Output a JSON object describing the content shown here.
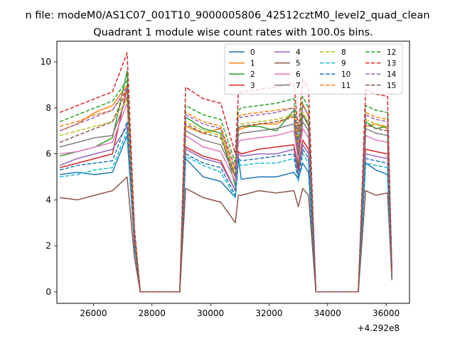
{
  "chart_data": {
    "type": "line",
    "suptitle": "n file: modeM0/AS1C07_001T10_9000005806_42512cztM0_level2_quad_clean",
    "title": "Quadrant 1 module wise count rates with 100.0s bins.",
    "xlabel": "",
    "ylabel": "",
    "offset_label": "+4.292e8",
    "xlim": [
      24750,
      36800
    ],
    "ylim": [
      -0.5,
      10.9
    ],
    "xticks": [
      26000,
      28000,
      30000,
      32000,
      34000,
      36000
    ],
    "yticks": [
      0,
      2,
      4,
      6,
      8,
      10
    ],
    "grid": false,
    "legend": {
      "loc": "upper right",
      "ncol": 4
    },
    "x": [
      24850,
      25450,
      26050,
      26650,
      27150,
      27400,
      27600,
      28950,
      29150,
      29750,
      30350,
      30850,
      30950,
      31050,
      31650,
      32250,
      32850,
      33000,
      33150,
      33350,
      33600,
      35050,
      35300,
      35650,
      36050,
      36200
    ],
    "series": [
      {
        "name": "0",
        "color": "#1f77b4",
        "style": "solid",
        "values": [
          5.1,
          5.2,
          5.1,
          5.2,
          6.8,
          2.0,
          0,
          0,
          5.8,
          5.0,
          4.8,
          4.1,
          5.9,
          4.9,
          5.0,
          5.0,
          5.2,
          4.9,
          5.6,
          5.2,
          0,
          0,
          5.6,
          5.3,
          5.1,
          0.6
        ]
      },
      {
        "name": "1",
        "color": "#ff7f0e",
        "style": "solid",
        "values": [
          7.0,
          7.3,
          7.8,
          8.1,
          9.0,
          2.5,
          0,
          0,
          7.2,
          6.9,
          7.1,
          5.0,
          7.0,
          7.1,
          7.3,
          7.3,
          7.7,
          6.5,
          8.2,
          7.6,
          0,
          0,
          7.2,
          7.3,
          7.1,
          0.7
        ]
      },
      {
        "name": "2",
        "color": "#2ca02c",
        "style": "solid",
        "values": [
          5.9,
          6.1,
          6.3,
          6.7,
          9.6,
          2.2,
          0,
          0,
          7.6,
          7.1,
          6.9,
          4.6,
          7.1,
          7.2,
          7.2,
          7.0,
          7.9,
          5.4,
          7.7,
          7.2,
          0,
          0,
          7.4,
          7.1,
          7.2,
          0.7
        ]
      },
      {
        "name": "3",
        "color": "#d62728",
        "style": "solid",
        "values": [
          5.4,
          5.6,
          5.8,
          6.0,
          8.9,
          2.1,
          0,
          0,
          6.3,
          5.9,
          5.7,
          4.4,
          6.1,
          6.0,
          6.2,
          6.3,
          6.4,
          5.3,
          6.6,
          6.2,
          0,
          0,
          6.2,
          6.1,
          6.0,
          0.7
        ]
      },
      {
        "name": "4",
        "color": "#9467bd",
        "style": "solid",
        "values": [
          5.5,
          5.8,
          6.0,
          6.2,
          7.2,
          2.1,
          0,
          0,
          6.2,
          5.8,
          5.6,
          4.4,
          6.0,
          5.9,
          6.0,
          6.0,
          6.2,
          5.1,
          6.4,
          6.0,
          0,
          0,
          6.0,
          5.9,
          5.8,
          0.6
        ]
      },
      {
        "name": "5",
        "color": "#8c564b",
        "style": "solid",
        "values": [
          4.1,
          4.0,
          4.2,
          4.4,
          5.0,
          1.5,
          0,
          0,
          4.5,
          4.1,
          3.9,
          3.0,
          4.2,
          4.2,
          4.4,
          4.3,
          4.4,
          3.7,
          4.5,
          4.2,
          0,
          0,
          4.4,
          4.2,
          4.3,
          0.5
        ]
      },
      {
        "name": "6",
        "color": "#e377c2",
        "style": "solid",
        "values": [
          6.0,
          6.1,
          6.3,
          6.5,
          8.2,
          2.2,
          0,
          0,
          6.8,
          6.3,
          6.1,
          4.8,
          6.5,
          6.6,
          6.7,
          6.8,
          7.0,
          5.7,
          7.1,
          6.7,
          0,
          0,
          6.8,
          6.6,
          6.5,
          0.7
        ]
      },
      {
        "name": "7",
        "color": "#7f7f7f",
        "style": "solid",
        "values": [
          6.3,
          6.5,
          6.7,
          6.8,
          8.5,
          2.3,
          0,
          0,
          7.0,
          6.6,
          6.4,
          5.0,
          6.8,
          6.9,
          7.0,
          7.1,
          7.3,
          5.9,
          7.4,
          7.0,
          0,
          0,
          7.1,
          6.9,
          6.8,
          0.7
        ]
      },
      {
        "name": "8",
        "color": "#bcbd22",
        "style": "dashed",
        "values": [
          6.8,
          7.0,
          7.2,
          7.4,
          8.4,
          2.4,
          0,
          0,
          7.4,
          7.0,
          6.8,
          5.2,
          7.2,
          7.3,
          7.4,
          7.5,
          7.7,
          6.2,
          7.8,
          7.4,
          0,
          0,
          7.5,
          7.3,
          7.2,
          0.8
        ]
      },
      {
        "name": "9",
        "color": "#17becf",
        "style": "dashed",
        "values": [
          5.0,
          5.1,
          5.3,
          5.4,
          7.0,
          2.0,
          0,
          0,
          5.9,
          5.5,
          5.2,
          4.1,
          5.6,
          5.5,
          5.6,
          5.6,
          5.8,
          4.8,
          6.0,
          5.6,
          0,
          0,
          5.6,
          5.5,
          5.4,
          0.6
        ]
      },
      {
        "name": "10",
        "color": "#1f77b4",
        "style": "dashed",
        "values": [
          5.3,
          5.5,
          5.6,
          5.7,
          7.4,
          2.1,
          0,
          0,
          6.0,
          5.6,
          5.4,
          4.2,
          5.8,
          5.7,
          5.8,
          5.9,
          6.0,
          4.9,
          6.2,
          5.8,
          0,
          0,
          5.8,
          5.7,
          5.6,
          0.6
        ]
      },
      {
        "name": "11",
        "color": "#ff7f0e",
        "style": "dashed",
        "values": [
          7.2,
          7.4,
          7.7,
          7.9,
          8.8,
          2.5,
          0,
          0,
          7.8,
          7.4,
          7.2,
          5.4,
          7.6,
          7.7,
          7.8,
          7.9,
          8.0,
          6.4,
          8.1,
          7.7,
          0,
          0,
          7.8,
          7.6,
          7.5,
          0.8
        ]
      },
      {
        "name": "12",
        "color": "#2ca02c",
        "style": "dashed",
        "values": [
          7.4,
          7.7,
          8.0,
          8.3,
          9.2,
          2.6,
          0,
          0,
          8.1,
          7.7,
          7.5,
          5.6,
          7.9,
          8.0,
          8.1,
          8.2,
          8.4,
          6.6,
          8.5,
          8.0,
          0,
          0,
          8.1,
          7.9,
          7.8,
          0.8
        ]
      },
      {
        "name": "13",
        "color": "#d62728",
        "style": "dashed",
        "values": [
          7.8,
          8.1,
          8.4,
          8.7,
          10.4,
          2.8,
          0,
          0,
          8.9,
          8.4,
          8.2,
          6.0,
          8.6,
          8.7,
          8.8,
          8.9,
          9.1,
          7.0,
          9.3,
          8.8,
          0,
          0,
          8.8,
          8.6,
          8.5,
          0.9
        ]
      },
      {
        "name": "14",
        "color": "#9467bd",
        "style": "dashed",
        "values": [
          7.0,
          7.3,
          7.6,
          7.9,
          8.9,
          2.5,
          0,
          0,
          7.7,
          7.3,
          7.1,
          5.3,
          7.5,
          7.6,
          7.7,
          7.8,
          8.0,
          6.3,
          8.1,
          7.7,
          0,
          0,
          7.7,
          7.5,
          7.4,
          0.8
        ]
      },
      {
        "name": "15",
        "color": "#8c564b",
        "style": "dashed",
        "values": [
          6.5,
          6.8,
          7.1,
          7.4,
          8.8,
          2.4,
          0,
          0,
          7.3,
          6.9,
          6.7,
          5.0,
          7.1,
          7.2,
          7.3,
          7.4,
          7.6,
          6.0,
          7.7,
          7.3,
          0,
          0,
          7.3,
          7.1,
          7.0,
          0.7
        ]
      }
    ]
  }
}
